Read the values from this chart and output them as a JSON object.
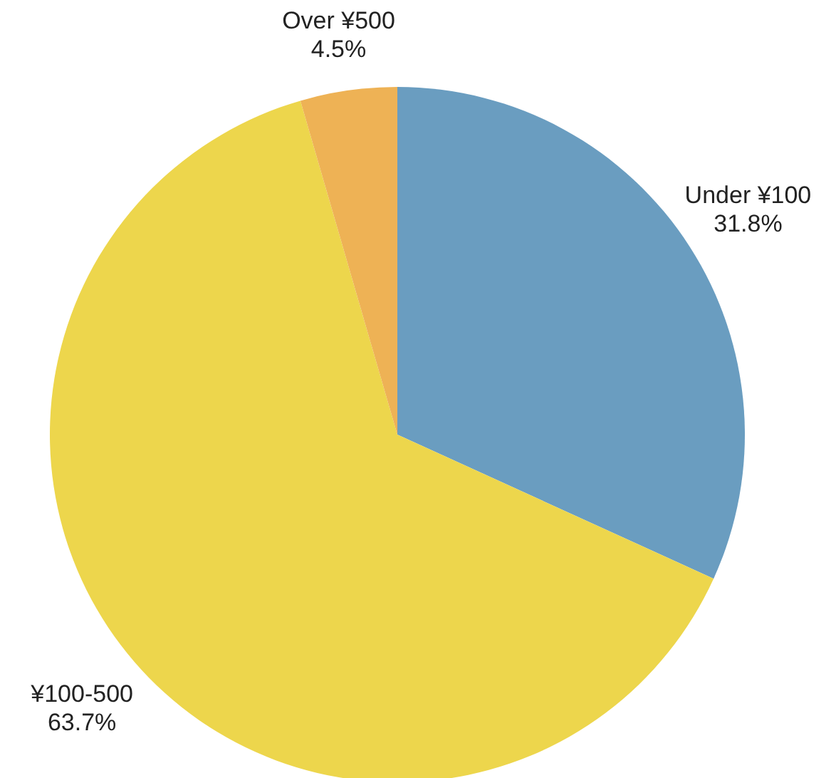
{
  "chart_data": {
    "type": "pie",
    "categories": [
      "Under ¥100",
      "¥100-500",
      "Over ¥500"
    ],
    "values": [
      31.8,
      63.7,
      4.5
    ],
    "value_labels": [
      "31.8%",
      "63.7%",
      "4.5%"
    ],
    "colors": [
      "#6a9dc0",
      "#edd64c",
      "#eeb255"
    ]
  }
}
